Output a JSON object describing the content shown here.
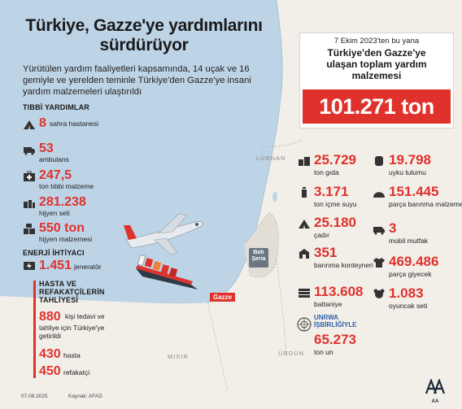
{
  "title": "Türkiye, Gazze'ye yardımlarını sürdürüyor",
  "subtitle": "Yürütülen yardım faaliyetleri kapsamında, 14 uçak ve 16 gemiyle ve yerelden teminle Türkiye'den Gazze'ye insani yardım malzemeleri ulaştırıldı",
  "medical": {
    "heading": "TIBBİ YARDIMLAR",
    "items": [
      {
        "value": "8",
        "label": "sahra hastanesi",
        "icon": "tent-icon"
      },
      {
        "value": "53",
        "label": "ambulans",
        "icon": "ambulance-icon"
      },
      {
        "value": "247,5",
        "label": "ton tıbbi malzeme",
        "icon": "medical-kit-icon"
      },
      {
        "value": "281.238",
        "label": "hijyen seti",
        "icon": "hygiene-icon"
      },
      {
        "value": "550 ton",
        "label": "hijyen malzemesi",
        "icon": "boxes-icon"
      }
    ]
  },
  "energy": {
    "heading": "ENERJİ İHTİYACI",
    "value": "1.451",
    "label": "jeneratör",
    "icon": "generator-icon"
  },
  "evacuation": {
    "heading_line1": "HASTA VE",
    "heading_line2": "REFAKATÇİLERİN",
    "heading_line3": "TAHLİYESİ",
    "total_value": "880",
    "total_label_1": "kişi tedavi ve",
    "total_label_2": "tahliye için Türkiye'ye",
    "total_label_3": "getirildi",
    "patients_value": "430",
    "patients_label": "hasta",
    "companions_value": "450",
    "companions_label": "refakatçi"
  },
  "summary": {
    "date_line": "7 Ekim 2023'ten bu yana",
    "head_line1": "Türkiye'den Gazze'ye",
    "head_line2": "ulaşan toplam yardım",
    "head_line3": "malzemesi",
    "total": "101.271 ton"
  },
  "supplies_left": [
    {
      "value": "25.729",
      "label": "ton gıda",
      "icon": "food-icon"
    },
    {
      "value": "3.171",
      "label": "ton içme suyu",
      "icon": "water-bottle-icon"
    },
    {
      "value": "25.180",
      "label": "çadır",
      "icon": "tent-icon"
    },
    {
      "value": "351",
      "label": "barınma konteyneri",
      "icon": "container-icon"
    },
    {
      "value": "113.608",
      "label": "battaniye",
      "icon": "blanket-icon"
    }
  ],
  "supplies_right": [
    {
      "value": "19.798",
      "label": "uyku tulumu",
      "icon": "sleeping-bag-icon"
    },
    {
      "value": "151.445",
      "label": "parça barınma malzemesi",
      "icon": "shelter-icon"
    },
    {
      "value": "3",
      "label": "mobil mutfak",
      "icon": "kitchen-icon"
    },
    {
      "value": "469.486",
      "label": "parça giyecek",
      "icon": "tshirt-icon"
    },
    {
      "value": "1.083",
      "label": "oyuncak seti",
      "icon": "toy-icon"
    }
  ],
  "unrwa": {
    "heading_line1": "UNRWA",
    "heading_line2": "İŞBİRLİĞİYLE",
    "value": "65.273",
    "label": "ton un",
    "icon": "un-logo-icon"
  },
  "map_labels": {
    "lebanon": "LÜBNAN",
    "westbank_1": "Batı",
    "westbank_2": "Şeria",
    "gaza": "Gazze",
    "egypt": "MISIR",
    "jordan": "ÜRDÜN"
  },
  "footer": {
    "date": "07.08.2025",
    "source": "Kaynak: AFAD",
    "logo": "AA"
  },
  "colors": {
    "accent": "#e0322d",
    "sea": "#bdd3e6",
    "land": "#f2efe9"
  }
}
